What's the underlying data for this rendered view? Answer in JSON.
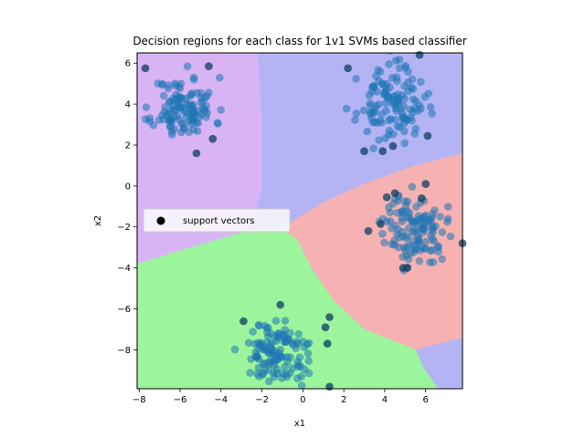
{
  "chart_data": {
    "type": "scatter",
    "title": "Decision regions for each class for 1v1 SVMs based classifier",
    "xlabel": "x1",
    "ylabel": "x2",
    "xlim": [
      -8.1,
      7.8
    ],
    "ylim": [
      -9.9,
      6.5
    ],
    "xticks": [
      -8,
      -6,
      -4,
      -2,
      0,
      2,
      4,
      6
    ],
    "yticks": [
      -8,
      -6,
      -4,
      -2,
      0,
      2,
      4,
      6
    ],
    "grid": false,
    "legend": {
      "position": "center-left",
      "entries": [
        "support vectors"
      ]
    },
    "colors": {
      "region_purple": "#d8b4f5",
      "region_blue": "#b4b4f5",
      "region_red": "#f6b2b2",
      "region_green": "#9cf59c",
      "points": "#1f77b4",
      "support_vectors": "#000000"
    },
    "regions": [
      {
        "color": "region_purple",
        "polygon": [
          [
            -8.1,
            6.5
          ],
          [
            -2.2,
            6.5
          ],
          [
            -2.0,
            3.5
          ],
          [
            -2.0,
            -0.2
          ],
          [
            -2.3,
            -1.2
          ],
          [
            -2.7,
            -2.2
          ],
          [
            -5.5,
            -3.0
          ],
          [
            -8.1,
            -3.8
          ]
        ]
      },
      {
        "color": "region_blue",
        "polygon": [
          [
            -2.2,
            6.5
          ],
          [
            7.8,
            6.5
          ],
          [
            7.8,
            1.6
          ],
          [
            5.5,
            1.0
          ],
          [
            3.0,
            0.1
          ],
          [
            1.0,
            -0.8
          ],
          [
            -0.3,
            -1.6
          ],
          [
            -1.0,
            -2.1
          ],
          [
            -2.7,
            -2.2
          ],
          [
            -2.3,
            -1.2
          ],
          [
            -2.0,
            -0.2
          ],
          [
            -2.0,
            3.5
          ]
        ]
      },
      {
        "color": "region_blue",
        "polygon": [
          [
            6.6,
            -9.9
          ],
          [
            7.8,
            -9.9
          ],
          [
            7.8,
            -7.4
          ],
          [
            6.2,
            -7.8
          ],
          [
            5.5,
            -8.0
          ],
          [
            5.9,
            -8.9
          ]
        ]
      },
      {
        "color": "region_red",
        "polygon": [
          [
            7.8,
            1.6
          ],
          [
            7.8,
            -7.4
          ],
          [
            6.2,
            -7.8
          ],
          [
            5.5,
            -8.0
          ],
          [
            3.0,
            -7.0
          ],
          [
            1.5,
            -5.6
          ],
          [
            0.4,
            -4.0
          ],
          [
            -0.3,
            -2.6
          ],
          [
            -1.0,
            -2.1
          ],
          [
            -0.3,
            -1.6
          ],
          [
            1.0,
            -0.8
          ],
          [
            3.0,
            0.1
          ],
          [
            5.5,
            1.0
          ]
        ]
      },
      {
        "color": "region_green",
        "polygon": [
          [
            -8.1,
            -3.8
          ],
          [
            -5.5,
            -3.0
          ],
          [
            -2.7,
            -2.2
          ],
          [
            -1.0,
            -2.1
          ],
          [
            -0.3,
            -2.6
          ],
          [
            0.4,
            -4.0
          ],
          [
            1.5,
            -5.6
          ],
          [
            3.0,
            -7.0
          ],
          [
            5.5,
            -8.0
          ],
          [
            5.9,
            -8.9
          ],
          [
            6.6,
            -9.9
          ],
          [
            -8.1,
            -9.9
          ]
        ]
      }
    ],
    "clusters": [
      {
        "center": [
          -5.8,
          3.8
        ],
        "spread": [
          0.75,
          0.75
        ],
        "count": 120,
        "seed": 11
      },
      {
        "center": [
          4.3,
          4.0
        ],
        "spread": [
          0.8,
          0.85
        ],
        "count": 120,
        "seed": 23
      },
      {
        "center": [
          5.5,
          -2.1
        ],
        "spread": [
          0.75,
          0.85
        ],
        "count": 120,
        "seed": 37
      },
      {
        "center": [
          -1.3,
          -8.2
        ],
        "spread": [
          0.8,
          0.75
        ],
        "count": 120,
        "seed": 51
      }
    ],
    "support_vectors": [
      [
        -7.7,
        5.75
      ],
      [
        -4.6,
        5.85
      ],
      [
        -4.4,
        2.3
      ],
      [
        -5.2,
        1.6
      ],
      [
        2.2,
        5.75
      ],
      [
        5.7,
        6.4
      ],
      [
        3.0,
        1.7
      ],
      [
        3.9,
        1.7
      ],
      [
        4.4,
        1.95
      ],
      [
        6.1,
        2.45
      ],
      [
        4.1,
        -0.55
      ],
      [
        4.5,
        -0.35
      ],
      [
        6.0,
        0.1
      ],
      [
        5.8,
        -0.6
      ],
      [
        3.8,
        -1.85
      ],
      [
        3.2,
        -2.2
      ],
      [
        4.9,
        -4.0
      ],
      [
        5.1,
        -4.0
      ],
      [
        7.8,
        -2.8
      ],
      [
        -2.9,
        -6.6
      ],
      [
        -1.1,
        -5.8
      ],
      [
        1.3,
        -6.4
      ],
      [
        1.1,
        -6.9
      ],
      [
        1.2,
        -7.7
      ],
      [
        1.3,
        -9.8
      ]
    ]
  }
}
